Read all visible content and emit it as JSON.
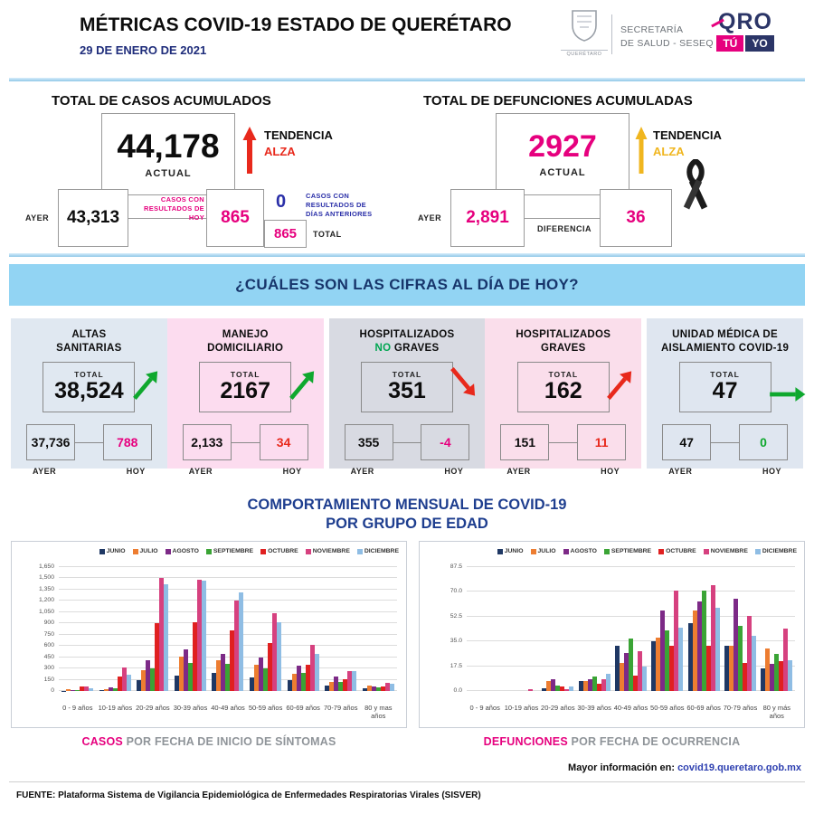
{
  "header": {
    "title": "MÉTRICAS COVID-19 ESTADO DE QUERÉTARO",
    "date": "29 DE ENERO DE 2021",
    "secretaria_line1": "SECRETARÍA",
    "secretaria_line2": "DE SALUD - SESEQ",
    "coat_label": "QUERÉTARO",
    "logo_qro": "QRO",
    "logo_tu": "TÚ",
    "logo_yo": "YO"
  },
  "cases": {
    "heading": "TOTAL DE CASOS ACUMULADOS",
    "actual_value": "44,178",
    "actual_label": "ACTUAL",
    "trend_label": "TENDENCIA",
    "trend_value": "ALZA",
    "trend_color": "#e8291c",
    "ayer_label": "AYER",
    "ayer_value": "43,313",
    "today_results_label": "CASOS CON RESULTADOS DE HOY",
    "today_results_value": "865",
    "previous_results_value": "0",
    "previous_results_label": "CASOS CON RESULTADOS DE DÍAS ANTERIORES",
    "total_value": "865",
    "total_label": "TOTAL"
  },
  "deaths": {
    "heading": "TOTAL DE DEFUNCIONES ACUMULADAS",
    "actual_value": "2927",
    "actual_label": "ACTUAL",
    "trend_label": "TENDENCIA",
    "trend_value": "ALZA",
    "trend_color": "#f0b61f",
    "ayer_label": "AYER",
    "ayer_value": "2,891",
    "diff_label": "DIFERENCIA",
    "diff_value": "36"
  },
  "banner": {
    "text": "¿CUÁLES SON LAS CIFRAS AL DÍA DE HOY?"
  },
  "cards": [
    {
      "title1": "ALTAS",
      "title2_accent": "",
      "title2": "SANITARIAS",
      "total_label": "TOTAL",
      "total": "38,524",
      "ayer": "37,736",
      "hoy": "788",
      "ayer_label": "AYER",
      "hoy_label": "HOY",
      "hoy_color": "#e6007e",
      "bg": "#e0e8f1",
      "trend_dir": "up",
      "trend_color": "#0fa82e"
    },
    {
      "title1": "MANEJO",
      "title2_accent": "",
      "title2": "DOMICILIARIO",
      "total_label": "TOTAL",
      "total": "2167",
      "ayer": "2,133",
      "hoy": "34",
      "ayer_label": "AYER",
      "hoy_label": "HOY",
      "hoy_color": "#e8291c",
      "bg": "#fcdcef",
      "trend_dir": "up",
      "trend_color": "#0fa82e"
    },
    {
      "title1": "HOSPITALIZADOS",
      "title2_accent": "NO",
      "title2": " GRAVES",
      "title2_accent_color": "#00a651",
      "total_label": "TOTAL",
      "total": "351",
      "ayer": "355",
      "hoy": "-4",
      "ayer_label": "AYER",
      "hoy_label": "HOY",
      "hoy_color": "#e6007e",
      "bg": "#d8dae2",
      "trend_dir": "down",
      "trend_color": "#e8291c"
    },
    {
      "title1": "HOSPITALIZADOS",
      "title2_accent": "",
      "title2": "GRAVES",
      "total_label": "TOTAL",
      "total": "162",
      "ayer": "151",
      "hoy": "11",
      "ayer_label": "AYER",
      "hoy_label": "HOY",
      "hoy_color": "#e8291c",
      "bg": "#fadeeb",
      "trend_dir": "up",
      "trend_color": "#e8291c"
    },
    {
      "title1": "UNIDAD MÉDICA DE",
      "title2_accent": "",
      "title2": "AISLAMIENTO COVID-19",
      "total_label": "TOTAL",
      "total": "47",
      "ayer": "47",
      "hoy": "0",
      "ayer_label": "AYER",
      "hoy_label": "HOY",
      "hoy_color": "#0fa82e",
      "bg": "#dfe6f0",
      "trend_dir": "right",
      "trend_color": "#0fa82e"
    }
  ],
  "charts_title": {
    "line1": "COMPORTAMIENTO MENSUAL DE COVID-19",
    "line2": "POR GRUPO DE EDAD"
  },
  "chart_data": [
    {
      "type": "bar",
      "title": "CASOS POR FECHA DE INICIO DE SÍNTOMAS",
      "categories": [
        "0 - 9 años",
        "10-19 años",
        "20-29 años",
        "30-39 años",
        "40-49 años",
        "50-59 años",
        "60-69 años",
        "70-79 años",
        "80 y mas años"
      ],
      "series": [
        {
          "name": "JUNIO",
          "color": "#1f3864",
          "values": [
            5,
            10,
            145,
            200,
            240,
            180,
            140,
            76,
            32
          ]
        },
        {
          "name": "JULIO",
          "color": "#ed7d31",
          "values": [
            25,
            28,
            280,
            460,
            405,
            355,
            228,
            116,
            68
          ]
        },
        {
          "name": "AGOSTO",
          "color": "#7d2a87",
          "values": [
            15,
            48,
            410,
            560,
            495,
            445,
            336,
            188,
            60
          ]
        },
        {
          "name": "SEPTIEMBRE",
          "color": "#3aa435",
          "values": [
            12,
            36,
            305,
            372,
            365,
            296,
            236,
            124,
            44
          ]
        },
        {
          "name": "OCTUBRE",
          "color": "#e02020",
          "values": [
            60,
            196,
            900,
            912,
            808,
            640,
            344,
            156,
            64
          ]
        },
        {
          "name": "NOVIEMBRE",
          "color": "#d6417f",
          "values": [
            62,
            308,
            1500,
            1485,
            1205,
            1035,
            616,
            268,
            108
          ]
        },
        {
          "name": "DICIEMBRE",
          "color": "#8fbde4",
          "values": [
            35,
            220,
            1425,
            1470,
            1315,
            915,
            488,
            268,
            96
          ]
        }
      ],
      "ylim": [
        0,
        1650
      ],
      "y_ticks": [
        "1,650",
        "1,500",
        "1,350",
        "1,200",
        "1,050",
        "900",
        "750",
        "600",
        "450",
        "300",
        "150",
        "0"
      ],
      "grid": true,
      "legend_position": "top-right"
    },
    {
      "type": "bar",
      "title": "DEFUNCIONES POR FECHA DE OCURRENCIA",
      "categories": [
        "0 - 9 años",
        "10-19 años",
        "20-29 años",
        "30-39 años",
        "40-49 años",
        "50-59 años",
        "60-69 años",
        "70-79 años",
        "80 y más años"
      ],
      "series": [
        {
          "name": "JUNIO",
          "color": "#1f3864",
          "values": [
            0,
            0,
            2,
            7,
            32,
            35,
            48,
            32,
            16
          ]
        },
        {
          "name": "JULIO",
          "color": "#ed7d31",
          "values": [
            0,
            0,
            7,
            7,
            20,
            38,
            57,
            32,
            30
          ]
        },
        {
          "name": "AGOSTO",
          "color": "#7d2a87",
          "values": [
            0,
            0,
            8,
            8,
            27,
            57,
            63,
            65,
            19
          ]
        },
        {
          "name": "SEPTIEMBRE",
          "color": "#3aa435",
          "values": [
            0,
            0,
            4,
            10,
            37,
            43,
            71,
            46,
            26
          ]
        },
        {
          "name": "OCTUBRE",
          "color": "#e02020",
          "values": [
            0,
            0,
            3,
            5,
            11,
            32,
            32,
            20,
            21
          ]
        },
        {
          "name": "NOVIEMBRE",
          "color": "#d6417f",
          "values": [
            0,
            1,
            1,
            8,
            28,
            71,
            75,
            53,
            44
          ]
        },
        {
          "name": "DICIEMBRE",
          "color": "#8fbde4",
          "values": [
            0,
            0,
            3,
            12,
            17,
            45,
            59,
            39,
            22
          ]
        }
      ],
      "ylim": [
        0,
        87.5
      ],
      "y_ticks": [
        "87.5",
        "70.0",
        "52.5",
        "35.0",
        "17.5",
        "0.0"
      ],
      "grid": true,
      "legend_position": "top-right"
    }
  ],
  "captions": {
    "cases_accent": "CASOS",
    "cases_rest": " POR FECHA DE INICIO DE SÍNTOMAS",
    "deaths_accent": "DEFUNCIONES",
    "deaths_rest": " POR FECHA DE OCURRENCIA"
  },
  "more_info": {
    "label": "Mayor información en: ",
    "link": "covid19.queretaro.gob.mx"
  },
  "footer": {
    "source": "FUENTE: Plataforma Sistema  de Vigilancia Epidemiológica de Enfermedades Respiratorias Virales (SISVER)"
  }
}
